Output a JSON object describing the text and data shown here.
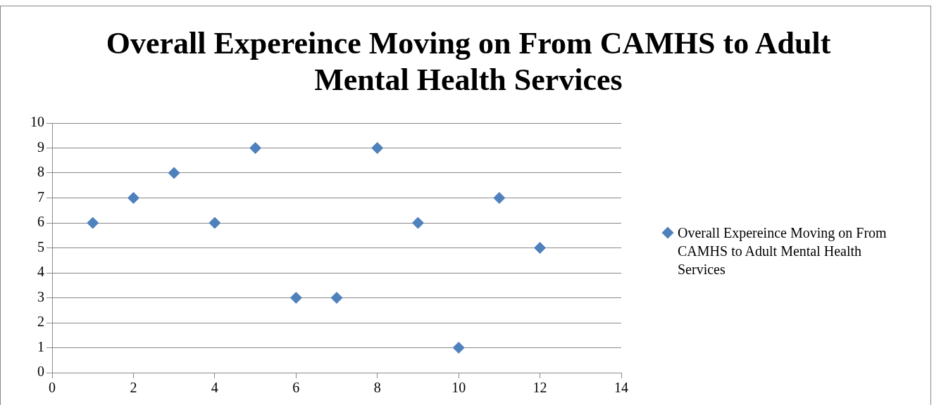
{
  "chart_data": {
    "type": "scatter",
    "title": "Overall Expereince Moving on From CAMHS to Adult Mental Health Services",
    "x": [
      1,
      2,
      3,
      4,
      5,
      6,
      7,
      8,
      9,
      10,
      11,
      12
    ],
    "series": [
      {
        "name": "Overall Expereince Moving on From CAMHS to Adult Mental Health Services",
        "color": "#4f81bd",
        "values": [
          6,
          7,
          8,
          6,
          9,
          3,
          3,
          9,
          6,
          1,
          7,
          5
        ]
      }
    ],
    "xlim": [
      0,
      14
    ],
    "xticks": [
      0,
      2,
      4,
      6,
      8,
      10,
      12,
      14
    ],
    "ylim": [
      0,
      10
    ],
    "yticks": [
      0,
      1,
      2,
      3,
      4,
      5,
      6,
      7,
      8,
      9,
      10
    ],
    "grid": "y",
    "legend": "right",
    "marker": "diamond"
  }
}
